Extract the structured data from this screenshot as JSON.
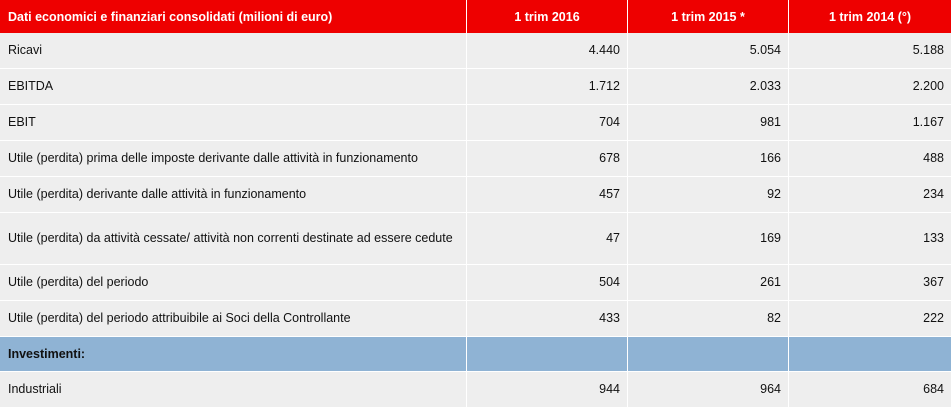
{
  "table": {
    "headers": [
      "Dati economici e finanziari consolidati (milioni di euro)",
      "1 trim 2016",
      "1 trim 2015 *",
      "1 trim 2014 (°)"
    ],
    "rows": [
      {
        "label": "Ricavi",
        "values": [
          "4.440",
          "5.054",
          "5.188"
        ]
      },
      {
        "label": "EBITDA",
        "values": [
          "1.712",
          "2.033",
          "2.200"
        ]
      },
      {
        "label": "EBIT",
        "values": [
          "704",
          "981",
          "1.167"
        ]
      },
      {
        "label": "Utile (perdita)  prima delle imposte derivante dalle attività in funzionamento",
        "values": [
          "678",
          "166",
          "488"
        ]
      },
      {
        "label": "Utile (perdita) derivante dalle attività in funzionamento",
        "values": [
          "457",
          "92",
          "234"
        ]
      },
      {
        "label": "Utile (perdita) da attività cessate/ attività non correnti destinate ad essere cedute",
        "values": [
          "47",
          "169",
          "133"
        ]
      },
      {
        "label": "Utile (perdita)  del periodo",
        "values": [
          "504",
          "261",
          "367"
        ]
      },
      {
        "label": "Utile (perdita) del periodo attribuibile ai Soci della Controllante",
        "values": [
          "433",
          "82",
          "222"
        ]
      }
    ],
    "section": {
      "label": "Investimenti:"
    },
    "section_rows": [
      {
        "label": "Industriali",
        "values": [
          "944",
          "964",
          "684"
        ]
      }
    ]
  }
}
